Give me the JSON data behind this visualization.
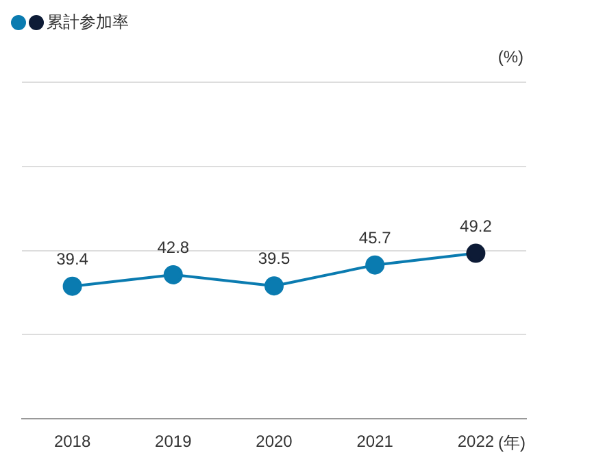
{
  "chart_data": {
    "type": "line",
    "categories": [
      "2018",
      "2019",
      "2020",
      "2021",
      "2022"
    ],
    "xlabel": "(年)",
    "ylabel": "(%)",
    "series": [
      {
        "name": "累計参加率",
        "color": "#0a7bb0",
        "colors": [
          "#0a7bb0",
          "#0a7bb0",
          "#0a7bb0",
          "#0a7bb0",
          "#0d1b36"
        ],
        "values": [
          39.4,
          42.8,
          39.5,
          45.7,
          49.2
        ]
      }
    ],
    "ylim": [
      0,
      100
    ],
    "yticks": [
      {
        "value": 0,
        "label": null
      },
      {
        "value": 25,
        "label": null
      },
      {
        "value": 50,
        "label": null
      },
      {
        "value": 75,
        "label": null
      },
      {
        "value": 100,
        "label": null
      }
    ],
    "tick_labels": "x",
    "grid": "y",
    "legend": "top left",
    "marker": "circle",
    "line_style": "solid",
    "data_labels": true
  }
}
